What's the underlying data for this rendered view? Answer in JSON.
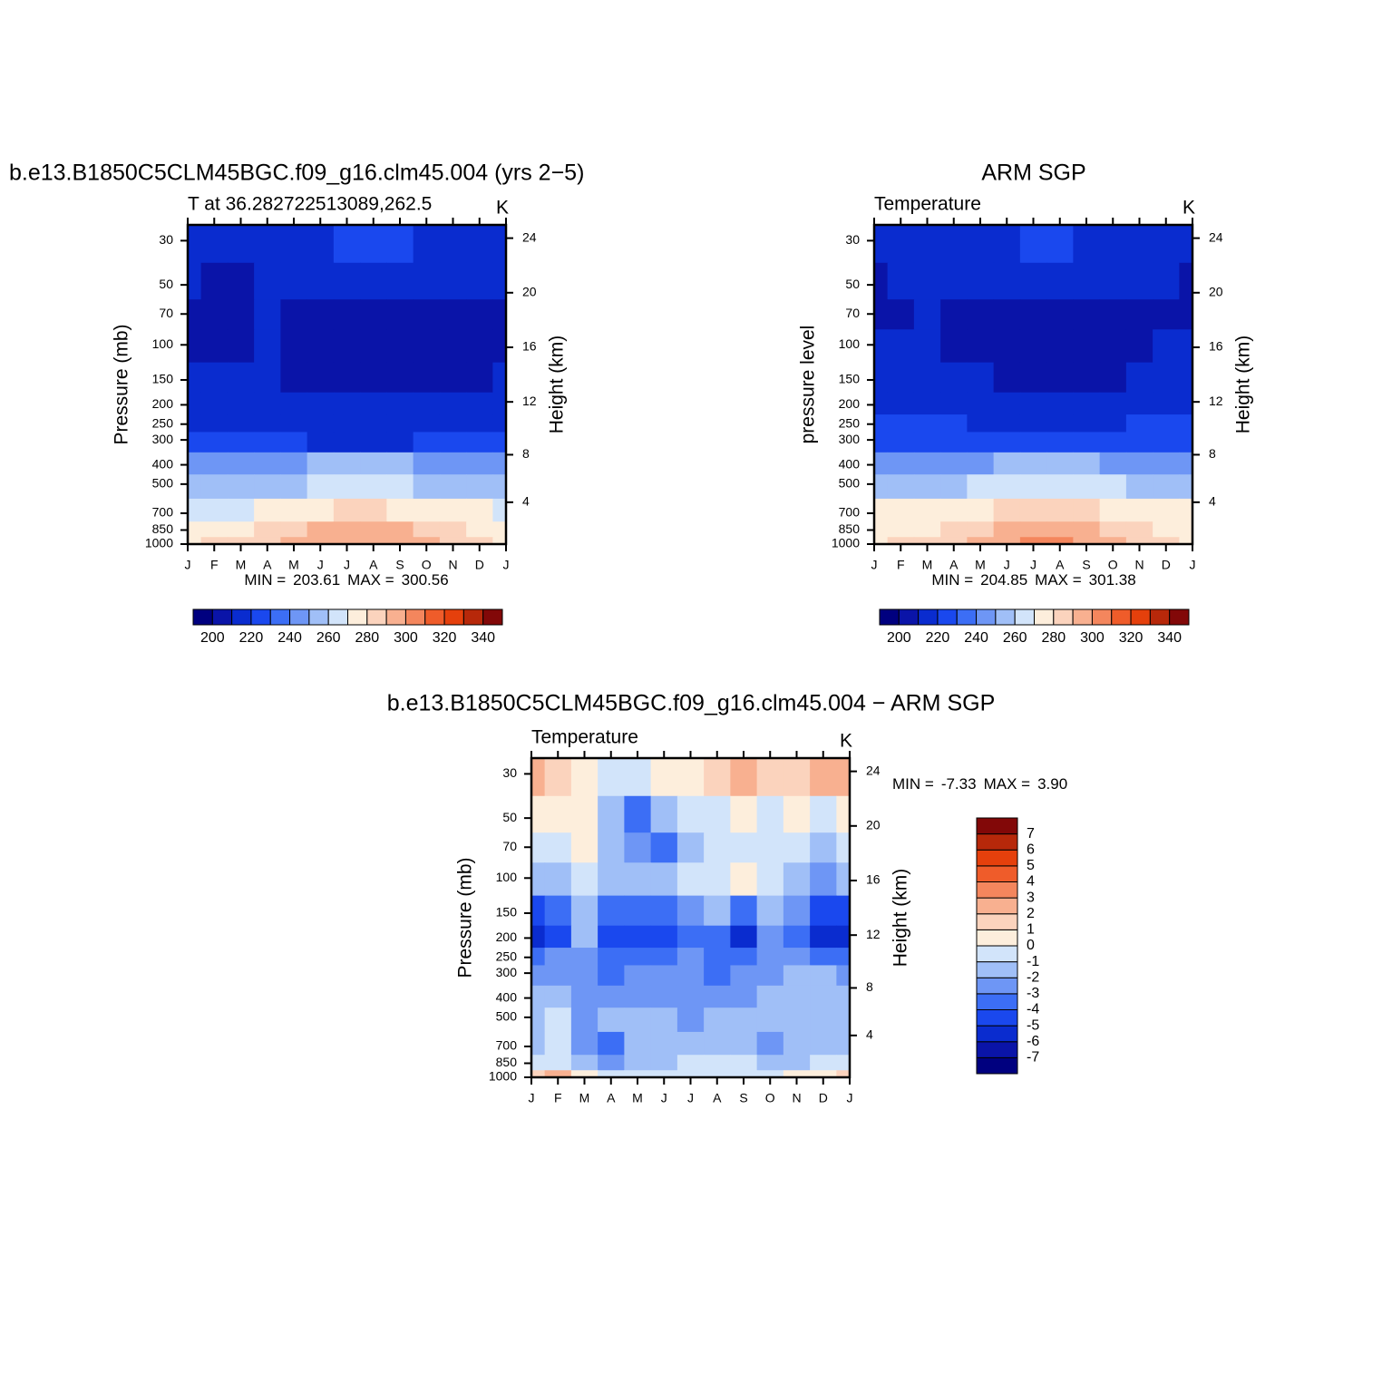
{
  "chart_data": [
    {
      "type": "contour",
      "title": "b.e13.B1850C5CLM45BGC.f09_g16.clm45.004 (yrs 2−5)",
      "subtitle": "T at 36.282722513089,262.5",
      "units": "K",
      "ylabel": "Pressure (mb)",
      "y2label": "Height (km)",
      "categories": [
        "J",
        "F",
        "M",
        "A",
        "M",
        "J",
        "J",
        "A",
        "S",
        "O",
        "N",
        "D",
        "J"
      ],
      "ylog": true,
      "ylim": [
        1000,
        25
      ],
      "yticks": [
        30,
        50,
        70,
        100,
        150,
        200,
        250,
        300,
        400,
        500,
        700,
        850,
        1000
      ],
      "y2ticks": [
        4,
        8,
        12,
        16,
        20,
        24
      ],
      "y": [
        30,
        50,
        70,
        100,
        150,
        200,
        250,
        300,
        400,
        500,
        700,
        850,
        1000
      ],
      "z": [
        [
          215,
          215,
          215,
          215,
          216,
          219,
          222,
          223,
          222,
          218,
          215,
          215,
          215
        ],
        [
          212,
          208,
          209,
          212,
          212,
          211,
          211,
          211,
          211,
          211,
          211,
          210,
          212
        ],
        [
          207,
          207,
          208,
          212,
          209,
          208,
          208,
          208,
          208,
          208,
          208,
          208,
          207
        ],
        [
          207,
          207,
          209,
          213,
          208,
          207,
          207,
          207,
          207,
          207,
          207,
          207,
          207
        ],
        [
          212,
          210,
          212,
          213,
          208,
          207,
          207,
          207,
          207,
          207,
          207,
          207,
          212
        ],
        [
          215,
          215,
          215,
          213,
          211,
          211,
          211,
          211,
          211,
          211,
          211,
          211,
          215
        ],
        [
          219,
          219,
          219,
          218,
          217,
          216,
          215,
          215,
          216,
          217,
          218,
          218,
          219
        ],
        [
          222,
          222,
          222,
          222,
          221,
          219,
          218,
          218,
          219,
          220,
          221,
          222,
          222
        ],
        [
          244,
          244,
          244,
          245,
          248,
          251,
          252,
          252,
          250,
          248,
          246,
          245,
          244
        ],
        [
          255,
          254,
          254,
          256,
          259,
          262,
          264,
          264,
          262,
          259,
          257,
          256,
          255
        ],
        [
          269,
          268,
          269,
          271,
          274,
          278,
          280,
          280,
          278,
          274,
          271,
          270,
          269
        ],
        [
          276,
          276,
          278,
          281,
          285,
          290,
          293,
          293,
          290,
          285,
          280,
          278,
          276
        ],
        [
          279,
          281,
          283,
          287,
          291,
          295,
          298,
          298,
          296,
          290,
          284,
          281,
          279
        ]
      ],
      "levels": [
        200,
        210,
        220,
        230,
        240,
        250,
        260,
        270,
        280,
        290,
        300,
        310,
        320,
        330,
        340
      ],
      "colors": [
        "#00007f",
        "#0a14a8",
        "#0a2ccf",
        "#1a48ee",
        "#3c6ef5",
        "#6e96f5",
        "#a0bff7",
        "#d2e4fa",
        "#fdeedc",
        "#fbd3bd",
        "#f8b090",
        "#f4865d",
        "#ef5c2a",
        "#e5400c",
        "#b7280a",
        "#820808"
      ],
      "colorbar": "horizontal",
      "colorbar_ticks": [
        200,
        220,
        240,
        260,
        280,
        300,
        320,
        340
      ],
      "min_text": "MIN =",
      "min": 203.61,
      "max_text": "MAX =",
      "max": 300.56
    },
    {
      "type": "contour",
      "title": "ARM SGP",
      "subtitle": "Temperature",
      "units": "K",
      "ylabel": "pressure level",
      "y2label": "Height (km)",
      "categories": [
        "J",
        "F",
        "M",
        "A",
        "M",
        "J",
        "J",
        "A",
        "S",
        "O",
        "N",
        "D",
        "J"
      ],
      "ylog": true,
      "ylim": [
        1000,
        25
      ],
      "yticks": [
        30,
        50,
        70,
        100,
        150,
        200,
        250,
        300,
        400,
        500,
        700,
        850,
        1000
      ],
      "y2ticks": [
        4,
        8,
        12,
        16,
        20,
        24
      ],
      "y": [
        30,
        50,
        70,
        100,
        150,
        200,
        250,
        300,
        400,
        500,
        700,
        850,
        1000
      ],
      "z": [
        [
          216,
          216,
          216,
          216,
          217,
          219,
          222,
          222,
          219,
          216,
          216,
          216,
          216
        ],
        [
          209,
          211,
          212,
          212,
          212,
          212,
          212,
          212,
          212,
          212,
          212,
          211,
          209
        ],
        [
          207,
          208,
          211,
          209,
          208,
          208,
          208,
          208,
          208,
          208,
          208,
          209,
          207
        ],
        [
          211,
          210,
          210,
          209,
          207,
          206,
          206,
          206,
          206,
          207,
          208,
          210,
          211
        ],
        [
          214,
          214,
          214,
          213,
          212,
          208,
          207,
          207,
          207,
          208,
          213,
          214,
          214
        ],
        [
          216,
          216,
          216,
          215,
          214,
          213,
          212,
          212,
          213,
          214,
          215,
          216,
          216
        ],
        [
          220,
          220,
          220,
          220,
          219,
          218,
          217,
          217,
          218,
          219,
          220,
          220,
          220
        ],
        [
          224,
          224,
          224,
          224,
          223,
          222,
          221,
          221,
          222,
          223,
          224,
          224,
          224
        ],
        [
          244,
          244,
          245,
          246,
          249,
          252,
          253,
          253,
          251,
          249,
          246,
          245,
          244
        ],
        [
          256,
          256,
          256,
          258,
          261,
          264,
          266,
          266,
          264,
          261,
          258,
          256,
          256
        ],
        [
          270,
          270,
          271,
          273,
          277,
          281,
          283,
          283,
          281,
          277,
          273,
          271,
          270
        ],
        [
          276,
          277,
          279,
          283,
          287,
          292,
          295,
          295,
          292,
          286,
          281,
          278,
          276
        ],
        [
          279,
          282,
          285,
          289,
          293,
          297,
          301,
          300,
          297,
          291,
          285,
          281,
          279
        ]
      ],
      "levels": [
        200,
        210,
        220,
        230,
        240,
        250,
        260,
        270,
        280,
        290,
        300,
        310,
        320,
        330,
        340
      ],
      "colors": [
        "#00007f",
        "#0a14a8",
        "#0a2ccf",
        "#1a48ee",
        "#3c6ef5",
        "#6e96f5",
        "#a0bff7",
        "#d2e4fa",
        "#fdeedc",
        "#fbd3bd",
        "#f8b090",
        "#f4865d",
        "#ef5c2a",
        "#e5400c",
        "#b7280a",
        "#820808"
      ],
      "colorbar": "horizontal",
      "colorbar_ticks": [
        200,
        220,
        240,
        260,
        280,
        300,
        320,
        340
      ],
      "min_text": "MIN =",
      "min": 204.85,
      "max_text": "MAX =",
      "max": 301.38
    },
    {
      "type": "contour",
      "title": "b.e13.B1850C5CLM45BGC.f09_g16.clm45.004 − ARM SGP",
      "subtitle": "Temperature",
      "units": "K",
      "ylabel": "Pressure (mb)",
      "y2label": "Height (km)",
      "categories": [
        "J",
        "F",
        "M",
        "A",
        "M",
        "J",
        "J",
        "A",
        "S",
        "O",
        "N",
        "D",
        "J"
      ],
      "ylog": true,
      "ylim": [
        1000,
        25
      ],
      "yticks": [
        30,
        50,
        70,
        100,
        150,
        200,
        250,
        300,
        400,
        500,
        700,
        850,
        1000
      ],
      "y2ticks": [
        4,
        8,
        12,
        16,
        20,
        24
      ],
      "y": [
        30,
        50,
        70,
        100,
        150,
        200,
        250,
        300,
        400,
        500,
        700,
        850,
        1000
      ],
      "z": [
        [
          2,
          1.5,
          0.5,
          -1,
          -0.5,
          0,
          0.5,
          1.5,
          2.5,
          1,
          1.5,
          2,
          2
        ],
        [
          0.5,
          0.5,
          0.5,
          -2,
          -4,
          -2,
          -1,
          -0.5,
          0.5,
          -0.5,
          0.5,
          -1,
          0.5
        ],
        [
          -1,
          -1,
          0.5,
          -2,
          -3,
          -4,
          -2,
          -0.5,
          -0.5,
          -0.5,
          -1,
          -1.5,
          -1
        ],
        [
          -2,
          -1.5,
          -0.5,
          -2,
          -2,
          -1.5,
          -1,
          -0.5,
          0.5,
          -0.5,
          -1.5,
          -3,
          -2
        ],
        [
          -5,
          -4,
          -2,
          -4,
          -4,
          -4,
          -3,
          -2,
          -4,
          -2,
          -3,
          -5,
          -5
        ],
        [
          -6,
          -5,
          -2,
          -5,
          -5,
          -5,
          -4,
          -4,
          -6,
          -3,
          -4,
          -6,
          -6
        ],
        [
          -4,
          -3,
          -3,
          -4,
          -4,
          -4,
          -3,
          -4,
          -4,
          -3,
          -3,
          -4,
          -4
        ],
        [
          -3,
          -2.5,
          -3,
          -4,
          -3,
          -3,
          -3,
          -4,
          -3,
          -3,
          -2,
          -2,
          -3
        ],
        [
          -1.5,
          -1.5,
          -3,
          -3,
          -3,
          -3,
          -2.5,
          -3,
          -3,
          -2,
          -1.5,
          -1.5,
          -1.5
        ],
        [
          -1.5,
          -1,
          -3,
          -2,
          -1.5,
          -2,
          -2.5,
          -2,
          -2,
          -2,
          -1.5,
          -1.5,
          -1.5
        ],
        [
          -1.5,
          -0.5,
          -3,
          -4,
          -2,
          -2,
          -1.5,
          -1.5,
          -1.5,
          -3,
          -2,
          -1.5,
          -1.5
        ],
        [
          -0.5,
          -0.5,
          -2,
          -3,
          -2,
          -1.5,
          -1,
          -1,
          -1,
          -1.5,
          -1.5,
          -1,
          -0.5
        ],
        [
          1,
          2,
          0.5,
          -1,
          -1,
          -1,
          -0.5,
          -1,
          -0.5,
          -0.5,
          0,
          0.5,
          1
        ]
      ],
      "levels": [
        -7,
        -6,
        -5,
        -4,
        -3,
        -2,
        -1,
        0,
        1,
        2,
        3,
        4,
        5,
        6,
        7
      ],
      "colors": [
        "#00007f",
        "#0a14a8",
        "#0a2ccf",
        "#1a48ee",
        "#3c6ef5",
        "#6e96f5",
        "#a0bff7",
        "#d2e4fa",
        "#fdeedc",
        "#fbd3bd",
        "#f8b090",
        "#f4865d",
        "#ef5c2a",
        "#e5400c",
        "#b7280a",
        "#820808"
      ],
      "colorbar": "vertical",
      "colorbar_ticks": [
        -7,
        -6,
        -5,
        -4,
        -3,
        -2,
        -1,
        0,
        1,
        2,
        3,
        4,
        5,
        6,
        7
      ],
      "min_text": "MIN =",
      "min": -7.33,
      "max_text": "MAX =",
      "max": {
        "value": 3.9,
        "label": "3.90"
      }
    }
  ]
}
